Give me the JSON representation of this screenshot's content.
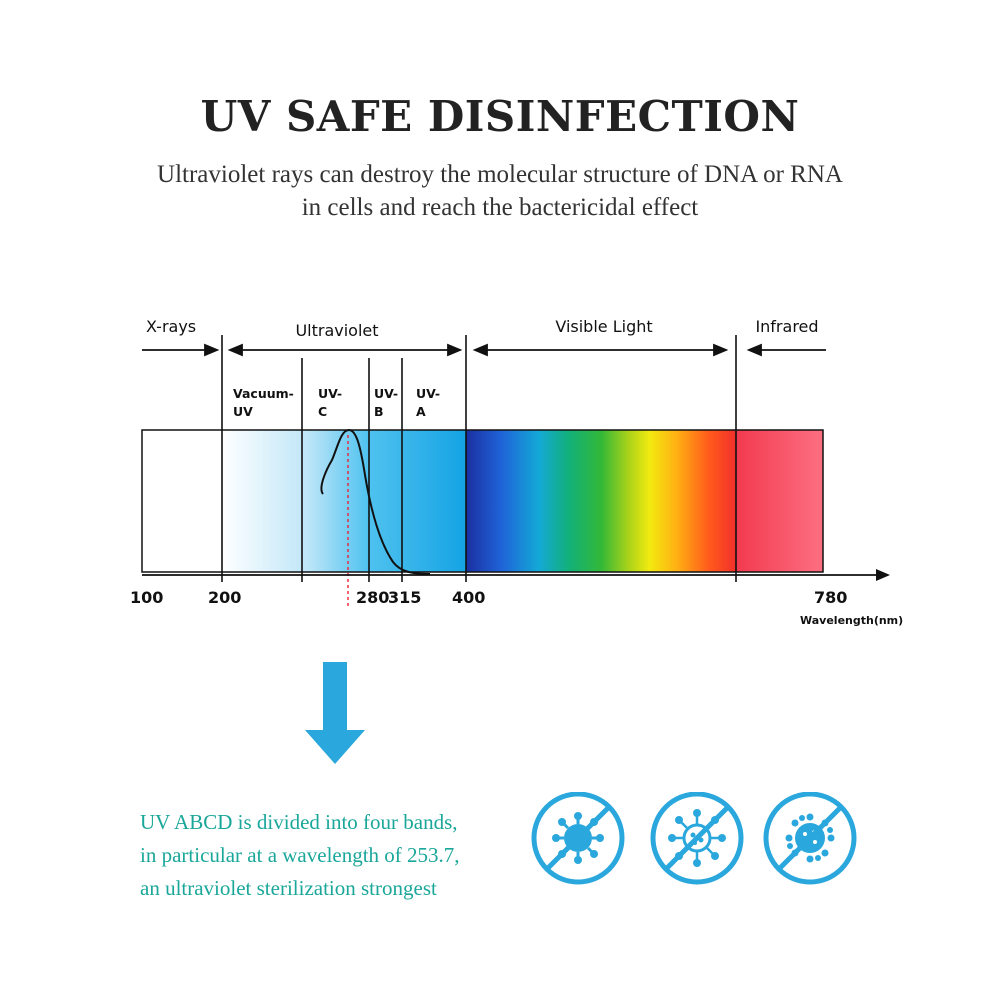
{
  "header": {
    "title": "UV SAFE DISINFECTION",
    "subtitle_line1": "Ultraviolet rays can destroy the molecular structure of DNA or RNA",
    "subtitle_line2": "in cells and reach the bactericidal effect"
  },
  "diagram": {
    "regions": {
      "xrays": "X-rays",
      "ultraviolet": "Ultraviolet",
      "visible": "Visible Light",
      "infrared": "Infrared"
    },
    "bands": [
      {
        "line1": "Vacuum-",
        "line2": "UV"
      },
      {
        "line1": "UV-",
        "line2": "C"
      },
      {
        "line1": "UV-",
        "line2": "B"
      },
      {
        "line1": "UV-",
        "line2": "A"
      }
    ],
    "ticks": [
      "100",
      "200",
      "280",
      "315",
      "400",
      "780"
    ],
    "axis_label": "Wavelength(nm)"
  },
  "footer": {
    "desc_line1": "UV ABCD is divided into four bands,",
    "desc_line2": "in particular at a wavelength of 253.7,",
    "desc_line3": "an ultraviolet sterilization strongest",
    "accent_color": "#1aa79a",
    "icon_color": "#2aa7dc",
    "icons": [
      "virus-prohibited-icon",
      "germ-prohibited-icon",
      "bacteria-prohibited-icon"
    ]
  }
}
